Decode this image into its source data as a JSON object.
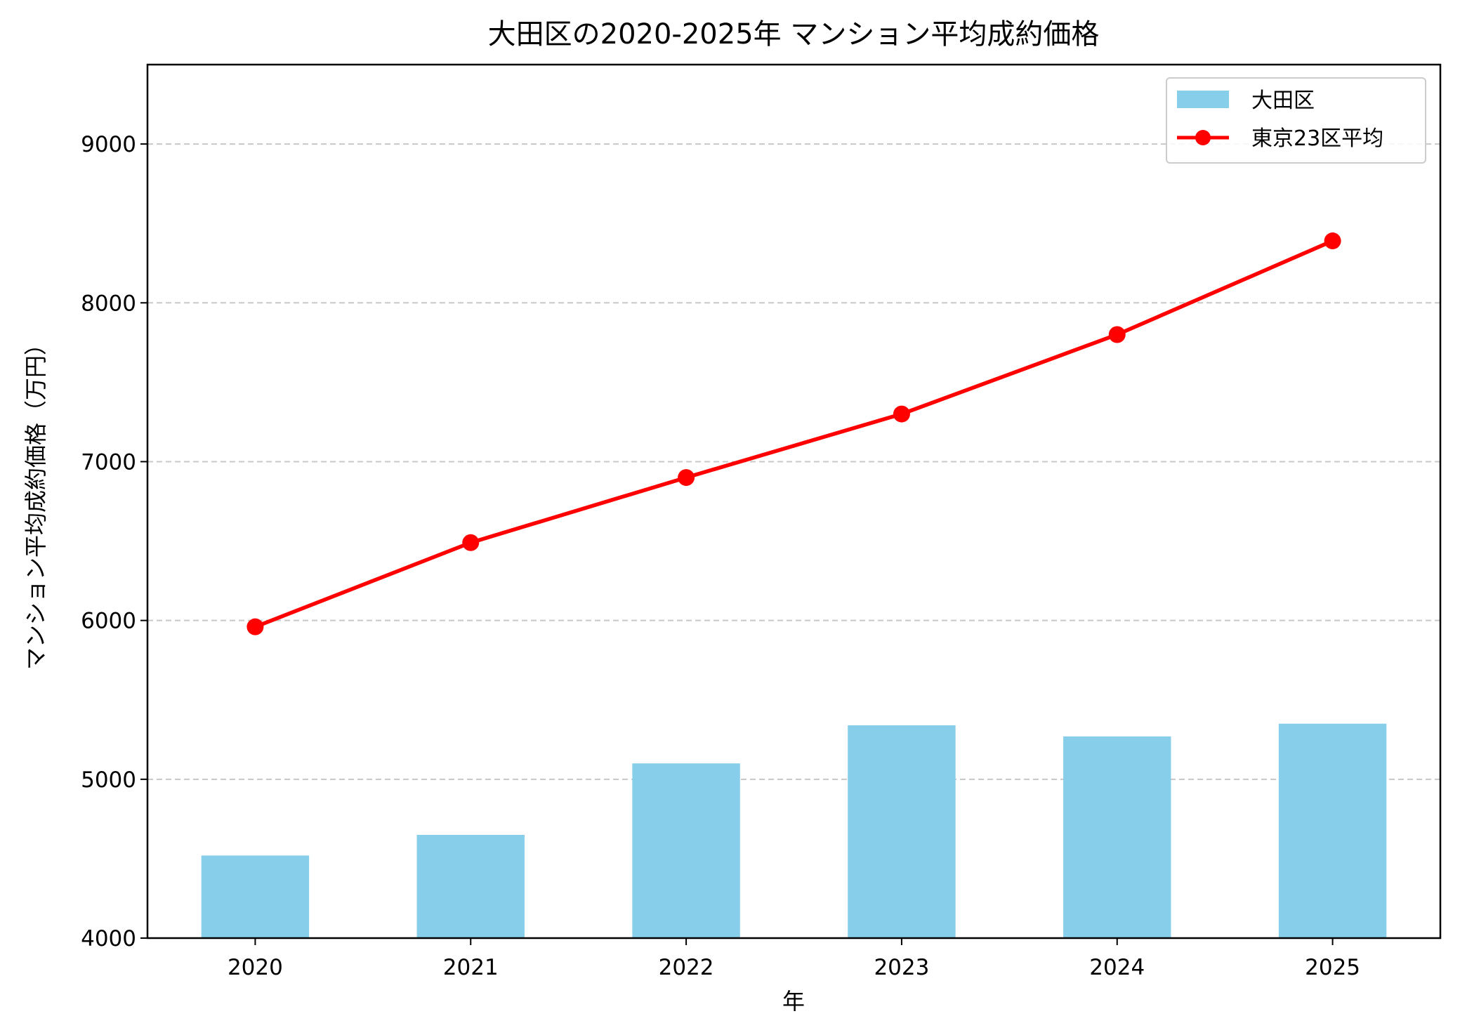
{
  "chart_data": {
    "type": "bar",
    "title": "大田区の2020-2025年 マンション平均成約価格",
    "xlabel": "年",
    "ylabel": "マンション平均成約価格（万円）",
    "categories": [
      "2020",
      "2021",
      "2022",
      "2023",
      "2024",
      "2025"
    ],
    "ylim": [
      4000,
      9500
    ],
    "yticks": [
      "4000",
      "5000",
      "6000",
      "7000",
      "8000",
      "9000"
    ],
    "grid": "y dashed",
    "legend_placement": "top-right",
    "series": [
      {
        "name": "大田区",
        "type": "bar",
        "color": "#87CEEB",
        "values": [
          4520,
          4650,
          5100,
          5340,
          5270,
          5350
        ]
      },
      {
        "name": "東京23区平均",
        "type": "line",
        "marker": "circle",
        "color": "#FF0000",
        "values": [
          5960,
          6490,
          6900,
          7300,
          7800,
          8390
        ]
      }
    ]
  }
}
